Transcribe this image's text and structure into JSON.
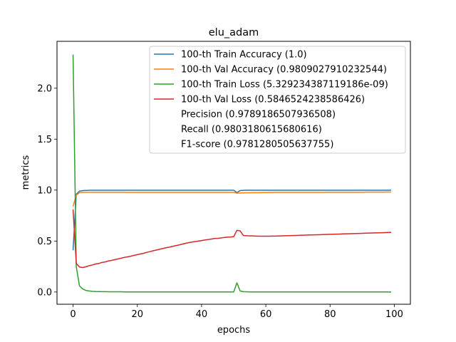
{
  "chart_data": {
    "type": "line",
    "title": "elu_adam",
    "xlabel": "epochs",
    "ylabel": "metrics",
    "xlim": [
      -5,
      105
    ],
    "ylim": [
      -0.12,
      2.46
    ],
    "xticks": [
      0,
      20,
      40,
      60,
      80,
      100
    ],
    "xtick_labels": [
      "0",
      "20",
      "40",
      "60",
      "80",
      "100"
    ],
    "yticks": [
      0.0,
      0.5,
      1.0,
      1.5,
      2.0
    ],
    "ytick_labels": [
      "0.0",
      "0.5",
      "1.0",
      "1.5",
      "2.0"
    ],
    "grid": false,
    "legend_position": "top-right",
    "x": [
      0,
      1,
      2,
      3,
      4,
      5,
      6,
      7,
      8,
      9,
      10,
      11,
      12,
      13,
      14,
      15,
      16,
      17,
      18,
      19,
      20,
      21,
      22,
      23,
      24,
      25,
      26,
      27,
      28,
      29,
      30,
      31,
      32,
      33,
      34,
      35,
      36,
      37,
      38,
      39,
      40,
      41,
      42,
      43,
      44,
      45,
      46,
      47,
      48,
      49,
      50,
      51,
      52,
      53,
      54,
      55,
      56,
      57,
      58,
      59,
      60,
      61,
      62,
      63,
      64,
      65,
      66,
      67,
      68,
      69,
      70,
      71,
      72,
      73,
      74,
      75,
      76,
      77,
      78,
      79,
      80,
      81,
      82,
      83,
      84,
      85,
      86,
      87,
      88,
      89,
      90,
      91,
      92,
      93,
      94,
      95,
      96,
      97,
      98,
      99
    ],
    "series": [
      {
        "name": "100-th Train Accuracy (1.0)",
        "color": "#1f77b4",
        "values": [
          0.41,
          0.96,
          0.99,
          0.995,
          0.997,
          0.998,
          0.999,
          0.999,
          0.999,
          0.999,
          0.999,
          0.999,
          0.999,
          0.999,
          0.999,
          0.999,
          0.999,
          0.999,
          0.999,
          0.999,
          0.999,
          0.999,
          0.999,
          0.999,
          0.999,
          0.999,
          0.999,
          0.999,
          0.999,
          0.999,
          0.999,
          0.999,
          0.999,
          0.999,
          0.999,
          0.999,
          0.999,
          0.999,
          0.999,
          0.999,
          0.999,
          0.999,
          0.999,
          0.999,
          0.999,
          0.999,
          0.999,
          0.999,
          0.999,
          0.999,
          0.999,
          0.975,
          0.995,
          0.998,
          0.999,
          0.999,
          0.999,
          0.999,
          0.999,
          0.999,
          0.999,
          0.999,
          0.999,
          0.999,
          0.999,
          0.999,
          0.999,
          0.999,
          0.999,
          0.999,
          0.999,
          0.999,
          0.999,
          0.999,
          0.999,
          0.999,
          0.999,
          0.999,
          0.999,
          0.999,
          0.999,
          0.999,
          0.999,
          0.999,
          0.999,
          0.999,
          0.999,
          0.999,
          0.999,
          0.999,
          0.999,
          0.999,
          0.999,
          0.999,
          0.999,
          0.999,
          0.999,
          0.999,
          0.999,
          1.0
        ]
      },
      {
        "name": "100-th Val Accuracy (0.9809027910232544)",
        "color": "#ff7f0e",
        "values": [
          0.84,
          0.95,
          0.975,
          0.978,
          0.979,
          0.979,
          0.979,
          0.979,
          0.979,
          0.979,
          0.979,
          0.979,
          0.979,
          0.979,
          0.979,
          0.979,
          0.979,
          0.978,
          0.978,
          0.978,
          0.978,
          0.978,
          0.978,
          0.978,
          0.978,
          0.978,
          0.978,
          0.978,
          0.978,
          0.978,
          0.978,
          0.978,
          0.978,
          0.978,
          0.978,
          0.978,
          0.978,
          0.978,
          0.978,
          0.978,
          0.978,
          0.978,
          0.978,
          0.978,
          0.978,
          0.978,
          0.978,
          0.978,
          0.978,
          0.978,
          0.978,
          0.97,
          0.972,
          0.973,
          0.974,
          0.974,
          0.975,
          0.975,
          0.975,
          0.976,
          0.976,
          0.977,
          0.977,
          0.978,
          0.978,
          0.978,
          0.978,
          0.978,
          0.978,
          0.978,
          0.978,
          0.978,
          0.978,
          0.978,
          0.978,
          0.978,
          0.978,
          0.978,
          0.978,
          0.979,
          0.979,
          0.979,
          0.979,
          0.979,
          0.979,
          0.979,
          0.979,
          0.979,
          0.979,
          0.979,
          0.979,
          0.98,
          0.98,
          0.98,
          0.98,
          0.98,
          0.98,
          0.98,
          0.981,
          0.981
        ]
      },
      {
        "name": "100-th Train Loss (5.329234387119186e-09)",
        "color": "#2ca02c",
        "values": [
          2.33,
          0.25,
          0.06,
          0.03,
          0.015,
          0.01,
          0.007,
          0.005,
          0.004,
          0.003,
          0.003,
          0.002,
          0.002,
          0.002,
          0.002,
          0.002,
          0.001,
          0.001,
          0.001,
          0.001,
          0.001,
          0.001,
          0.001,
          0.001,
          0.001,
          0.001,
          0.001,
          0.001,
          0.001,
          0.001,
          0.001,
          0.001,
          0.001,
          0.001,
          0.001,
          0.001,
          0.001,
          0.001,
          0.001,
          0.001,
          0.001,
          0.001,
          0.001,
          0.001,
          0.001,
          0.001,
          0.001,
          0.001,
          0.001,
          0.001,
          0.001,
          0.09,
          0.01,
          0.003,
          0.002,
          0.001,
          0.001,
          0.001,
          0.001,
          0.001,
          0.001,
          0.001,
          0.001,
          0.001,
          0.001,
          0.001,
          0.001,
          0.001,
          0.001,
          0.001,
          0.001,
          0.001,
          0.001,
          0.001,
          0.001,
          0.001,
          0.001,
          0.001,
          0.001,
          0.001,
          0.001,
          0.001,
          0.001,
          0.001,
          0.001,
          0.001,
          0.001,
          0.001,
          0.001,
          0.001,
          0.001,
          0.001,
          0.001,
          0.001,
          0.001,
          0.001,
          0.001,
          0.001,
          0.001,
          0.0
        ]
      },
      {
        "name": "100-th Val Loss (0.5846524238586426)",
        "color": "#d62728",
        "values": [
          0.81,
          0.28,
          0.245,
          0.24,
          0.248,
          0.258,
          0.265,
          0.275,
          0.28,
          0.29,
          0.295,
          0.305,
          0.31,
          0.318,
          0.325,
          0.332,
          0.34,
          0.345,
          0.352,
          0.36,
          0.367,
          0.374,
          0.38,
          0.39,
          0.397,
          0.405,
          0.412,
          0.42,
          0.427,
          0.435,
          0.44,
          0.448,
          0.455,
          0.462,
          0.47,
          0.478,
          0.485,
          0.49,
          0.495,
          0.5,
          0.505,
          0.51,
          0.515,
          0.52,
          0.525,
          0.527,
          0.53,
          0.535,
          0.538,
          0.54,
          0.543,
          0.605,
          0.6,
          0.555,
          0.552,
          0.551,
          0.55,
          0.549,
          0.548,
          0.548,
          0.548,
          0.548,
          0.549,
          0.549,
          0.55,
          0.551,
          0.552,
          0.553,
          0.554,
          0.555,
          0.556,
          0.557,
          0.558,
          0.559,
          0.56,
          0.561,
          0.562,
          0.563,
          0.564,
          0.565,
          0.566,
          0.567,
          0.568,
          0.569,
          0.57,
          0.571,
          0.572,
          0.573,
          0.574,
          0.575,
          0.576,
          0.577,
          0.578,
          0.579,
          0.58,
          0.581,
          0.582,
          0.583,
          0.584,
          0.585
        ]
      }
    ],
    "legend_extra": [
      "Precision (0.9789186507936508)",
      "Recall (0.9803180615680616)",
      "F1-score (0.9781280505637755)"
    ]
  }
}
